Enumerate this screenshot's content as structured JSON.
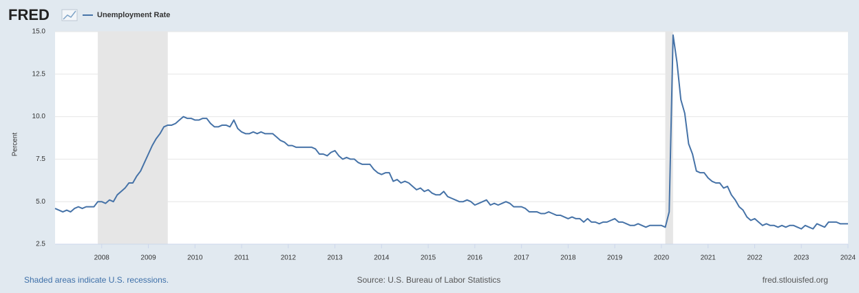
{
  "chart_data": {
    "type": "line",
    "logo": "FRED",
    "ylabel": "Percent",
    "note": "Shaded areas indicate U.S. recessions.",
    "source": "Source: U.S. Bureau of Labor Statistics",
    "site": "fred.stlouisfed.org",
    "x": [
      "2007-01",
      "2007-02",
      "2007-03",
      "2007-04",
      "2007-05",
      "2007-06",
      "2007-07",
      "2007-08",
      "2007-09",
      "2007-10",
      "2007-11",
      "2007-12",
      "2008-01",
      "2008-02",
      "2008-03",
      "2008-04",
      "2008-05",
      "2008-06",
      "2008-07",
      "2008-08",
      "2008-09",
      "2008-10",
      "2008-11",
      "2008-12",
      "2009-01",
      "2009-02",
      "2009-03",
      "2009-04",
      "2009-05",
      "2009-06",
      "2009-07",
      "2009-08",
      "2009-09",
      "2009-10",
      "2009-11",
      "2009-12",
      "2010-01",
      "2010-02",
      "2010-03",
      "2010-04",
      "2010-05",
      "2010-06",
      "2010-07",
      "2010-08",
      "2010-09",
      "2010-10",
      "2010-11",
      "2010-12",
      "2011-01",
      "2011-02",
      "2011-03",
      "2011-04",
      "2011-05",
      "2011-06",
      "2011-07",
      "2011-08",
      "2011-09",
      "2011-10",
      "2011-11",
      "2011-12",
      "2012-01",
      "2012-02",
      "2012-03",
      "2012-04",
      "2012-05",
      "2012-06",
      "2012-07",
      "2012-08",
      "2012-09",
      "2012-10",
      "2012-11",
      "2012-12",
      "2013-01",
      "2013-02",
      "2013-03",
      "2013-04",
      "2013-05",
      "2013-06",
      "2013-07",
      "2013-08",
      "2013-09",
      "2013-10",
      "2013-11",
      "2013-12",
      "2014-01",
      "2014-02",
      "2014-03",
      "2014-04",
      "2014-05",
      "2014-06",
      "2014-07",
      "2014-08",
      "2014-09",
      "2014-10",
      "2014-11",
      "2014-12",
      "2015-01",
      "2015-02",
      "2015-03",
      "2015-04",
      "2015-05",
      "2015-06",
      "2015-07",
      "2015-08",
      "2015-09",
      "2015-10",
      "2015-11",
      "2015-12",
      "2016-01",
      "2016-02",
      "2016-03",
      "2016-04",
      "2016-05",
      "2016-06",
      "2016-07",
      "2016-08",
      "2016-09",
      "2016-10",
      "2016-11",
      "2016-12",
      "2017-01",
      "2017-02",
      "2017-03",
      "2017-04",
      "2017-05",
      "2017-06",
      "2017-07",
      "2017-08",
      "2017-09",
      "2017-10",
      "2017-11",
      "2017-12",
      "2018-01",
      "2018-02",
      "2018-03",
      "2018-04",
      "2018-05",
      "2018-06",
      "2018-07",
      "2018-08",
      "2018-09",
      "2018-10",
      "2018-11",
      "2018-12",
      "2019-01",
      "2019-02",
      "2019-03",
      "2019-04",
      "2019-05",
      "2019-06",
      "2019-07",
      "2019-08",
      "2019-09",
      "2019-10",
      "2019-11",
      "2019-12",
      "2020-01",
      "2020-02",
      "2020-03",
      "2020-04",
      "2020-05",
      "2020-06",
      "2020-07",
      "2020-08",
      "2020-09",
      "2020-10",
      "2020-11",
      "2020-12",
      "2021-01",
      "2021-02",
      "2021-03",
      "2021-04",
      "2021-05",
      "2021-06",
      "2021-07",
      "2021-08",
      "2021-09",
      "2021-10",
      "2021-11",
      "2021-12",
      "2022-01",
      "2022-02",
      "2022-03",
      "2022-04",
      "2022-05",
      "2022-06",
      "2022-07",
      "2022-08",
      "2022-09",
      "2022-10",
      "2022-11",
      "2022-12",
      "2023-01",
      "2023-02",
      "2023-03",
      "2023-04",
      "2023-05",
      "2023-06",
      "2023-07",
      "2023-08",
      "2023-09",
      "2023-10",
      "2023-11",
      "2023-12",
      "2024-01"
    ],
    "series": [
      {
        "name": "Unemployment Rate",
        "color": "#4572a7",
        "values": [
          4.6,
          4.5,
          4.4,
          4.5,
          4.4,
          4.6,
          4.7,
          4.6,
          4.7,
          4.7,
          4.7,
          5.0,
          5.0,
          4.9,
          5.1,
          5.0,
          5.4,
          5.6,
          5.8,
          6.1,
          6.1,
          6.5,
          6.8,
          7.3,
          7.8,
          8.3,
          8.7,
          9.0,
          9.4,
          9.5,
          9.5,
          9.6,
          9.8,
          10.0,
          9.9,
          9.9,
          9.8,
          9.8,
          9.9,
          9.9,
          9.6,
          9.4,
          9.4,
          9.5,
          9.5,
          9.4,
          9.8,
          9.3,
          9.1,
          9.0,
          9.0,
          9.1,
          9.0,
          9.1,
          9.0,
          9.0,
          9.0,
          8.8,
          8.6,
          8.5,
          8.3,
          8.3,
          8.2,
          8.2,
          8.2,
          8.2,
          8.2,
          8.1,
          7.8,
          7.8,
          7.7,
          7.9,
          8.0,
          7.7,
          7.5,
          7.6,
          7.5,
          7.5,
          7.3,
          7.2,
          7.2,
          7.2,
          6.9,
          6.7,
          6.6,
          6.7,
          6.7,
          6.2,
          6.3,
          6.1,
          6.2,
          6.1,
          5.9,
          5.7,
          5.8,
          5.6,
          5.7,
          5.5,
          5.4,
          5.4,
          5.6,
          5.3,
          5.2,
          5.1,
          5.0,
          5.0,
          5.1,
          5.0,
          4.8,
          4.9,
          5.0,
          5.1,
          4.8,
          4.9,
          4.8,
          4.9,
          5.0,
          4.9,
          4.7,
          4.7,
          4.7,
          4.6,
          4.4,
          4.4,
          4.4,
          4.3,
          4.3,
          4.4,
          4.3,
          4.2,
          4.2,
          4.1,
          4.0,
          4.1,
          4.0,
          4.0,
          3.8,
          4.0,
          3.8,
          3.8,
          3.7,
          3.8,
          3.8,
          3.9,
          4.0,
          3.8,
          3.8,
          3.7,
          3.6,
          3.6,
          3.7,
          3.6,
          3.5,
          3.6,
          3.6,
          3.6,
          3.6,
          3.5,
          4.4,
          14.8,
          13.2,
          11.0,
          10.2,
          8.4,
          7.8,
          6.8,
          6.7,
          6.7,
          6.4,
          6.2,
          6.1,
          6.1,
          5.8,
          5.9,
          5.4,
          5.1,
          4.7,
          4.5,
          4.1,
          3.9,
          4.0,
          3.8,
          3.6,
          3.7,
          3.6,
          3.6,
          3.5,
          3.6,
          3.5,
          3.6,
          3.6,
          3.5,
          3.4,
          3.6,
          3.5,
          3.4,
          3.7,
          3.6,
          3.5,
          3.8,
          3.8,
          3.8,
          3.7,
          3.7,
          3.7
        ]
      }
    ],
    "recessions": [
      [
        "2007-12",
        "2009-06"
      ],
      [
        "2020-02",
        "2020-04"
      ]
    ],
    "recession_color": "#e6e6e6",
    "xlim": [
      "2007-01",
      "2024-01"
    ],
    "xticks": [
      2008,
      2009,
      2010,
      2011,
      2012,
      2013,
      2014,
      2015,
      2016,
      2017,
      2018,
      2019,
      2020,
      2021,
      2022,
      2023,
      2024
    ],
    "ylim": [
      2.5,
      15
    ],
    "yticks": [
      2.5,
      {
        "value": 5,
        "label": "5.0"
      },
      7.5,
      {
        "value": 10,
        "label": "10.0"
      },
      12.5,
      {
        "value": 15,
        "label": "15.0"
      }
    ],
    "grid": true
  }
}
